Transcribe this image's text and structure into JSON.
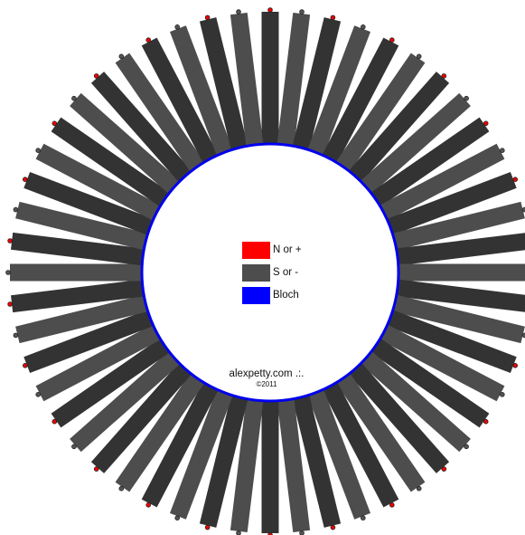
{
  "diagram": {
    "spoke_count": 52,
    "spoke_colors": [
      "#333333",
      "#4d4d4d"
    ],
    "ring_color": "#0000ee",
    "marker_colors": {
      "n": "#ee0000",
      "s": "#555555"
    },
    "marker_outline": "#222222"
  },
  "legend": {
    "items": [
      {
        "label": "N or +",
        "color": "#ff0000"
      },
      {
        "label": "S or -",
        "color": "#4d4d4d"
      },
      {
        "label": "Bloch",
        "color": "#0000ff"
      }
    ]
  },
  "credit": {
    "text": "alexpetty.com .:.",
    "year": "©2011"
  }
}
